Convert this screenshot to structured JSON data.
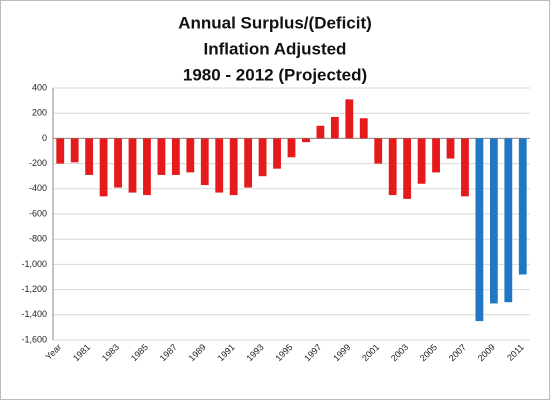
{
  "chart_data": {
    "type": "bar",
    "title": [
      "Annual Surplus/(Deficit)",
      "Inflation Adjusted",
      "1980 - 2012 (Projected)"
    ],
    "categories": [
      "Year",
      null,
      "1981",
      null,
      "1983",
      null,
      "1985",
      null,
      "1987",
      null,
      "1989",
      null,
      "1991",
      null,
      "1993",
      null,
      "1995",
      null,
      "1997",
      null,
      "1999",
      null,
      "2001",
      null,
      "2003",
      null,
      "2005",
      null,
      "2007",
      null,
      "2009",
      null,
      "2011"
    ],
    "values": [
      -200,
      -190,
      -290,
      -460,
      -390,
      -430,
      -450,
      -290,
      -290,
      -270,
      -370,
      -430,
      -450,
      -390,
      -300,
      -240,
      -150,
      -30,
      100,
      170,
      310,
      160,
      -200,
      -450,
      -480,
      -360,
      -270,
      -160,
      -460,
      -1450,
      -1310,
      -1300,
      -1080
    ],
    "colors": [
      "#e41a1c",
      "#e41a1c",
      "#e41a1c",
      "#e41a1c",
      "#e41a1c",
      "#e41a1c",
      "#e41a1c",
      "#e41a1c",
      "#e41a1c",
      "#e41a1c",
      "#e41a1c",
      "#e41a1c",
      "#e41a1c",
      "#e41a1c",
      "#e41a1c",
      "#e41a1c",
      "#e41a1c",
      "#e41a1c",
      "#e41a1c",
      "#e41a1c",
      "#e41a1c",
      "#e41a1c",
      "#e41a1c",
      "#e41a1c",
      "#e41a1c",
      "#e41a1c",
      "#e41a1c",
      "#e41a1c",
      "#e41a1c",
      "#1f78c1",
      "#1f78c1",
      "#1f78c1",
      "#1f78c1"
    ],
    "ylim": [
      -1600,
      400
    ],
    "yticks": [
      -1600,
      -1400,
      -1200,
      -1000,
      -800,
      -600,
      -400,
      -200,
      0,
      200,
      400
    ],
    "ytick_labels": [
      {
        "value": -1600,
        "label": "-1,600"
      },
      {
        "value": -1400,
        "label": "-1,400"
      },
      {
        "value": -1200,
        "label": "-1,200"
      },
      {
        "value": -1000,
        "label": "-1,000"
      },
      -800,
      -600,
      -400,
      -200,
      0,
      200,
      400
    ],
    "grid": true
  }
}
